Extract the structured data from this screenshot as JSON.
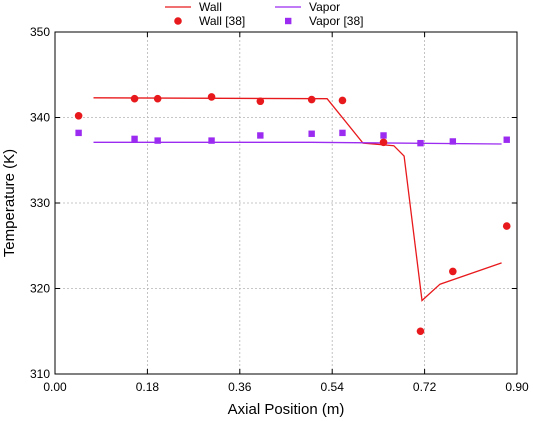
{
  "chart_data": {
    "type": "line",
    "title": "",
    "xlabel": "Axial Position (m)",
    "ylabel": "Temperature (K)",
    "xlim": [
      0.0,
      0.9
    ],
    "ylim": [
      310,
      350
    ],
    "x_ticks": [
      0.0,
      0.18,
      0.36,
      0.54,
      0.72,
      0.9
    ],
    "x_tick_labels": [
      "0.00",
      "0.18",
      "0.36",
      "0.54",
      "0.72",
      "0.90"
    ],
    "y_ticks": [
      310,
      320,
      330,
      340,
      350
    ],
    "y_tick_labels": [
      "310",
      "320",
      "330",
      "340",
      "350"
    ],
    "grid": true,
    "legend_position": "top",
    "series": [
      {
        "name": "Wall",
        "kind": "line",
        "color": "#e8191c",
        "x": [
          0.075,
          0.53,
          0.6,
          0.66,
          0.68,
          0.715,
          0.75,
          0.87
        ],
        "y": [
          342.3,
          342.2,
          337.0,
          336.7,
          335.5,
          318.6,
          320.5,
          323.0
        ]
      },
      {
        "name": "Vapor",
        "kind": "line",
        "color": "#9b2bf0",
        "x": [
          0.075,
          0.5,
          0.87
        ],
        "y": [
          337.1,
          337.1,
          336.9
        ]
      },
      {
        "name": "Wall [38]",
        "kind": "scatter",
        "marker": "circle",
        "color": "#e8191c",
        "x": [
          0.046,
          0.155,
          0.2,
          0.305,
          0.4,
          0.5,
          0.56,
          0.64,
          0.712,
          0.775,
          0.88
        ],
        "y": [
          340.2,
          342.2,
          342.2,
          342.4,
          341.9,
          342.1,
          342.0,
          337.1,
          315.0,
          322.0,
          327.3
        ]
      },
      {
        "name": "Vapor [38]",
        "kind": "scatter",
        "marker": "square",
        "color": "#9b2bf0",
        "x": [
          0.046,
          0.155,
          0.2,
          0.305,
          0.4,
          0.5,
          0.56,
          0.64,
          0.712,
          0.775,
          0.88
        ],
        "y": [
          338.2,
          337.5,
          337.3,
          337.3,
          337.9,
          338.1,
          338.2,
          337.9,
          337.0,
          337.2,
          337.4
        ]
      }
    ]
  }
}
